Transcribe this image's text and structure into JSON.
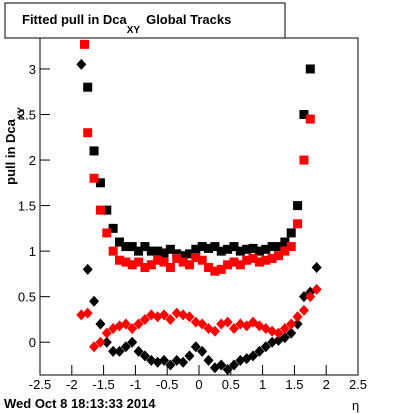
{
  "chart_data": {
    "type": "scatter",
    "title": "Fitted pull in Dca",
    "title_subscript": "XY",
    "title_rest": "Global Tracks",
    "y_label": "pull in Dca",
    "y_label_subscript": "XY",
    "x_label": "η",
    "footer": "Wed Oct  8 18:13:33 2014",
    "xlim": [
      -2.5,
      2.5
    ],
    "ylim": [
      -0.36,
      3.34
    ],
    "xticks": [
      -2.5,
      -2,
      -1.5,
      -1,
      -0.5,
      0,
      0.5,
      1,
      1.5,
      2,
      2.5
    ],
    "yticks": [
      0,
      0.5,
      1,
      1.5,
      2,
      2.5,
      3
    ],
    "series": [
      {
        "color": "#000000",
        "marker": "square",
        "x": [
          -1.75,
          -1.65,
          -1.55,
          -1.45,
          -1.35,
          -1.25,
          -1.15,
          -1.05,
          -0.95,
          -0.85,
          -0.75,
          -0.65,
          -0.55,
          -0.45,
          -0.35,
          -0.25,
          -0.15,
          -0.05,
          0.05,
          0.15,
          0.25,
          0.35,
          0.45,
          0.55,
          0.65,
          0.75,
          0.85,
          0.95,
          1.05,
          1.15,
          1.25,
          1.35,
          1.45,
          1.55,
          1.65,
          1.75
        ],
        "values": [
          2.8,
          2.1,
          1.75,
          1.45,
          1.25,
          1.1,
          1.05,
          1.05,
          1.0,
          1.05,
          1.0,
          1.0,
          0.98,
          1.02,
          0.97,
          0.95,
          0.97,
          1.02,
          1.05,
          1.03,
          1.05,
          1.0,
          1.02,
          1.05,
          1.0,
          1.02,
          1.03,
          1.0,
          1.02,
          1.05,
          1.05,
          1.1,
          1.2,
          1.5,
          2.5,
          3.0
        ]
      },
      {
        "color": "#ff0000",
        "marker": "square",
        "x": [
          -1.8,
          -1.75,
          -1.65,
          -1.55,
          -1.45,
          -1.35,
          -1.25,
          -1.15,
          -1.05,
          -0.95,
          -0.85,
          -0.75,
          -0.65,
          -0.55,
          -0.45,
          -0.35,
          -0.25,
          -0.15,
          -0.05,
          0.05,
          0.15,
          0.25,
          0.35,
          0.45,
          0.55,
          0.65,
          0.75,
          0.85,
          0.95,
          1.05,
          1.15,
          1.25,
          1.35,
          1.45,
          1.55,
          1.65,
          1.75
        ],
        "values": [
          3.27,
          2.3,
          1.8,
          1.45,
          1.2,
          1.0,
          0.9,
          0.88,
          0.85,
          0.88,
          0.82,
          0.85,
          0.9,
          0.88,
          0.82,
          0.92,
          0.88,
          0.85,
          0.93,
          0.9,
          0.82,
          0.78,
          0.8,
          0.85,
          0.88,
          0.85,
          0.9,
          0.92,
          0.88,
          0.9,
          0.92,
          0.95,
          1.0,
          1.05,
          1.3,
          2.0,
          2.45
        ]
      },
      {
        "color": "#000000",
        "marker": "diamond",
        "x": [
          -1.85,
          -1.75,
          -1.65,
          -1.55,
          -1.45,
          -1.35,
          -1.25,
          -1.15,
          -1.05,
          -0.95,
          -0.85,
          -0.75,
          -0.65,
          -0.55,
          -0.45,
          -0.35,
          -0.25,
          -0.15,
          -0.05,
          0.05,
          0.15,
          0.25,
          0.35,
          0.45,
          0.55,
          0.65,
          0.75,
          0.85,
          0.95,
          1.05,
          1.15,
          1.25,
          1.35,
          1.45,
          1.55,
          1.65,
          1.75,
          1.85
        ],
        "values": [
          3.05,
          0.8,
          0.45,
          0.2,
          0.0,
          -0.1,
          -0.1,
          -0.05,
          0.0,
          -0.1,
          -0.15,
          -0.2,
          -0.22,
          -0.2,
          -0.25,
          -0.2,
          -0.22,
          -0.15,
          -0.05,
          -0.1,
          -0.2,
          -0.28,
          -0.25,
          -0.3,
          -0.25,
          -0.2,
          -0.18,
          -0.15,
          -0.1,
          -0.05,
          0.0,
          0.02,
          0.05,
          0.1,
          0.2,
          0.5,
          0.55,
          0.82
        ]
      },
      {
        "color": "#ff0000",
        "marker": "diamond",
        "x": [
          -1.85,
          -1.75,
          -1.65,
          -1.55,
          -1.45,
          -1.35,
          -1.25,
          -1.15,
          -1.05,
          -0.95,
          -0.85,
          -0.75,
          -0.65,
          -0.55,
          -0.45,
          -0.35,
          -0.25,
          -0.15,
          -0.05,
          0.05,
          0.15,
          0.25,
          0.35,
          0.45,
          0.55,
          0.65,
          0.75,
          0.85,
          0.95,
          1.05,
          1.15,
          1.25,
          1.35,
          1.45,
          1.55,
          1.65,
          1.75,
          1.85
        ],
        "values": [
          0.3,
          0.32,
          -0.05,
          0.0,
          0.1,
          0.15,
          0.18,
          0.2,
          0.15,
          0.2,
          0.25,
          0.3,
          0.28,
          0.3,
          0.25,
          0.32,
          0.3,
          0.28,
          0.22,
          0.2,
          0.15,
          0.12,
          0.2,
          0.22,
          0.15,
          0.2,
          0.18,
          0.22,
          0.18,
          0.15,
          0.12,
          0.1,
          0.15,
          0.2,
          0.28,
          0.35,
          0.5,
          0.58
        ]
      }
    ]
  }
}
